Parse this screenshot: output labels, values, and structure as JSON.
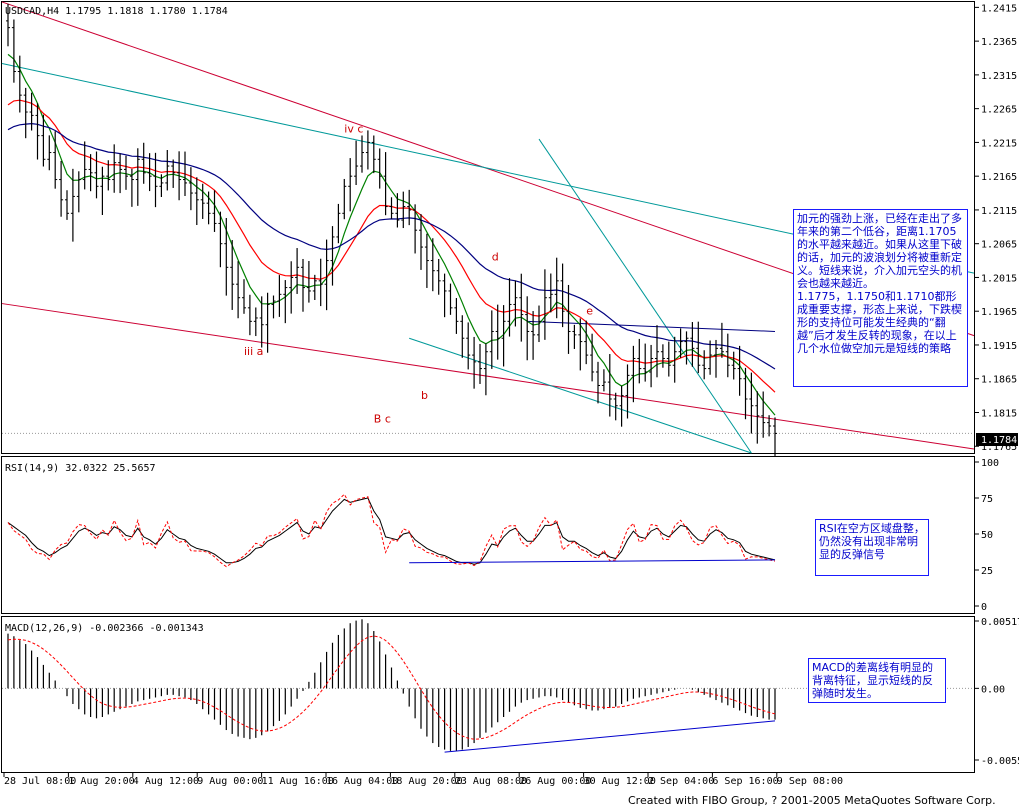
{
  "chart_data": [
    {
      "type": "candlestick",
      "panel": "price",
      "title": "USDCAD,H4  1.1795 1.1818 1.1780 1.1784",
      "last_price_label": "1.1784",
      "yticks": [
        "1.2415",
        "1.2365",
        "1.2315",
        "1.2265",
        "1.2215",
        "1.2165",
        "1.2115",
        "1.2065",
        "1.2015",
        "1.1965",
        "1.1915",
        "1.1865",
        "1.1815",
        "1.1765"
      ],
      "ylim": [
        1.1755,
        1.242
      ],
      "bar_count": 131,
      "close": [
        1.2385,
        1.232,
        1.2285,
        1.226,
        1.2255,
        1.2225,
        1.219,
        1.22,
        1.216,
        1.213,
        1.211,
        1.2135,
        1.216,
        1.2175,
        1.217,
        1.215,
        1.2165,
        1.216,
        1.2185,
        1.2175,
        1.2165,
        1.216,
        1.219,
        1.217,
        1.2165,
        1.215,
        1.2155,
        1.218,
        1.217,
        1.216,
        1.2155,
        1.214,
        1.213,
        1.2125,
        1.211,
        1.2095,
        1.2065,
        1.203,
        1.2005,
        1.1985,
        1.197,
        1.195,
        1.1955,
        1.1945,
        1.1975,
        1.198,
        1.199,
        1.2,
        1.2015,
        1.203,
        1.2,
        1.1995,
        1.201,
        1.2005,
        1.204,
        1.2075,
        1.211,
        1.215,
        1.2165,
        1.218,
        1.22,
        1.2215,
        1.219,
        1.2165,
        1.212,
        1.211,
        1.21,
        1.212,
        1.2115,
        1.2085,
        1.206,
        1.204,
        1.2025,
        1.201,
        1.1995,
        1.197,
        1.195,
        1.1925,
        1.19,
        1.189,
        1.188,
        1.1905,
        1.1935,
        1.1925,
        1.195,
        1.1975,
        1.1985,
        1.196,
        1.1935,
        1.193,
        1.195,
        1.1985,
        1.199,
        1.201,
        1.1965,
        1.1935,
        1.193,
        1.192,
        1.19,
        1.1875,
        1.1855,
        1.186,
        1.1835,
        1.1825,
        1.184,
        1.187,
        1.1895,
        1.188,
        1.1875,
        1.1895,
        1.1905,
        1.1895,
        1.1885,
        1.1905,
        1.192,
        1.1925,
        1.191,
        1.1885,
        1.188,
        1.19,
        1.191,
        1.1905,
        1.1885,
        1.188,
        1.1865,
        1.1835,
        1.1825,
        1.181,
        1.18,
        1.1795,
        1.1784
      ],
      "moving_averages": [
        {
          "color": "#008000",
          "period": "fast"
        },
        {
          "color": "#ff0000",
          "period": "medium"
        },
        {
          "color": "#000080",
          "period": "slow"
        }
      ],
      "trendlines": [
        {
          "color": "#cc0033",
          "from": [
            1.242,
            0
          ],
          "to": [
            1.203,
            130
          ]
        },
        {
          "color": "#009999",
          "from": [
            1.233,
            0
          ],
          "to": [
            1.2085,
            130
          ]
        },
        {
          "color": "#009999",
          "from": [
            1.222,
            90
          ],
          "to": [
            1.1755,
            126
          ]
        },
        {
          "color": "#cc0033",
          "from": [
            1.1975,
            0
          ],
          "to": [
            1.1805,
            130
          ]
        },
        {
          "color": "#009999",
          "from": [
            1.1925,
            68
          ],
          "to": [
            1.1755,
            126
          ]
        },
        {
          "color": "#000080",
          "from": [
            1.195,
            88
          ],
          "to": [
            1.1935,
            130
          ]
        }
      ],
      "wave_labels": [
        {
          "text": "iv c",
          "bar": 57,
          "price": 1.223
        },
        {
          "text": "iii a",
          "bar": 40,
          "price": 1.19
        },
        {
          "text": "b",
          "bar": 70,
          "price": 1.1835
        },
        {
          "text": "d",
          "bar": 82,
          "price": 1.204
        },
        {
          "text": "e",
          "bar": 98,
          "price": 1.196
        },
        {
          "text": "B c",
          "bar": 62,
          "price": 1.18
        }
      ],
      "annotation": "加元的强劲上涨，已经在走出了多年来的第二个低谷，距离1.1705的水平越来越近。如果从这里下破的话，加元的波浪划分将被重新定义。短线来说，介入加元空头的机会也越来越近。\n1.1775，1.1750和1.1710都形成重要支撑，形态上来说，下跌楔形的支持位可能发生经典的“翻越”后才发生反转的现象，在以上几个水位做空加元是短线的策略"
    },
    {
      "type": "line",
      "panel": "rsi",
      "title": "RSI(14,9)  32.0322  25.5657",
      "yticks": [
        "100",
        "75",
        "50",
        "25",
        "0"
      ],
      "ylim": [
        0,
        100
      ],
      "values": [
        58,
        55,
        52,
        49,
        44,
        40,
        38,
        35,
        37,
        40,
        42,
        47,
        52,
        54,
        52,
        49,
        51,
        50,
        55,
        53,
        49,
        48,
        54,
        48,
        46,
        43,
        47,
        53,
        50,
        47,
        46,
        42,
        40,
        39,
        38,
        36,
        33,
        30,
        30,
        31,
        33,
        36,
        40,
        41,
        45,
        47,
        49,
        52,
        55,
        58,
        52,
        50,
        55,
        54,
        60,
        66,
        70,
        74,
        72,
        73,
        74,
        75,
        66,
        60,
        48,
        47,
        46,
        50,
        51,
        46,
        43,
        40,
        38,
        36,
        35,
        33,
        31,
        30,
        30,
        29,
        30,
        36,
        43,
        42,
        48,
        52,
        54,
        49,
        45,
        45,
        50,
        56,
        56,
        58,
        48,
        45,
        45,
        42,
        40,
        37,
        35,
        37,
        34,
        33,
        38,
        46,
        52,
        48,
        47,
        52,
        54,
        50,
        48,
        52,
        56,
        55,
        50,
        46,
        45,
        50,
        53,
        51,
        47,
        46,
        44,
        38,
        36,
        35,
        34,
        33,
        32
      ],
      "signal_color": "#ff0000",
      "support_line": {
        "from": [
          30,
          68
        ],
        "to": [
          32,
          130
        ]
      },
      "annotation": "RSI在空方区域盘整，仍然没有出现非常明显的反弹信号"
    },
    {
      "type": "bar",
      "panel": "macd",
      "title": "MACD(12,26,9)  -0.002366  -0.001343",
      "yticks": [
        "0.00517",
        "0.00",
        "-0.0055"
      ],
      "ylim": [
        -0.0055,
        0.00517
      ],
      "values": [
        0.0042,
        0.004,
        0.0037,
        0.0034,
        0.0029,
        0.0024,
        0.0018,
        0.0012,
        0.0006,
        0.0,
        -0.0006,
        -0.0012,
        -0.0016,
        -0.002,
        -0.0022,
        -0.0023,
        -0.0022,
        -0.002,
        -0.0018,
        -0.0016,
        -0.0014,
        -0.0012,
        -0.001,
        -0.0009,
        -0.0008,
        -0.0007,
        -0.0006,
        -0.0005,
        -0.0005,
        -0.0006,
        -0.0007,
        -0.0009,
        -0.0012,
        -0.0016,
        -0.002,
        -0.0024,
        -0.0028,
        -0.0032,
        -0.0035,
        -0.0037,
        -0.0038,
        -0.0039,
        -0.0038,
        -0.0036,
        -0.0033,
        -0.0029,
        -0.0025,
        -0.002,
        -0.0014,
        -0.0008,
        -0.0002,
        0.0005,
        0.0012,
        0.002,
        0.0028,
        0.0035,
        0.0041,
        0.0046,
        0.005,
        0.0052,
        0.0053,
        0.005,
        0.0044,
        0.0036,
        0.0026,
        0.0016,
        0.0006,
        -0.0004,
        -0.0014,
        -0.0023,
        -0.0031,
        -0.0037,
        -0.0042,
        -0.0045,
        -0.0047,
        -0.0048,
        -0.0048,
        -0.0047,
        -0.0045,
        -0.0042,
        -0.0038,
        -0.0034,
        -0.003,
        -0.0026,
        -0.0022,
        -0.0018,
        -0.0014,
        -0.0011,
        -0.0009,
        -0.0008,
        -0.0007,
        -0.0006,
        -0.0006,
        -0.0007,
        -0.0009,
        -0.0011,
        -0.0013,
        -0.0015,
        -0.0016,
        -0.0017,
        -0.0017,
        -0.0016,
        -0.0015,
        -0.0014,
        -0.0012,
        -0.001,
        -0.0008,
        -0.0007,
        -0.0006,
        -0.0005,
        -0.0004,
        -0.0003,
        -0.0002,
        -0.0001,
        0.0,
        0.0,
        -0.0001,
        -0.0003,
        -0.0005,
        -0.0007,
        -0.0009,
        -0.0011,
        -0.0013,
        -0.0015,
        -0.0017,
        -0.0019,
        -0.0021,
        -0.0022,
        -0.0023,
        -0.0024,
        -0.0024
      ],
      "signal_color": "#ff0000",
      "divergence_line": {
        "from": [
          -0.0049,
          74
        ],
        "to": [
          -0.0025,
          130
        ]
      },
      "annotation": "MACD的差离线有明显的背离特征，显示短线的反弹随时发生。"
    }
  ],
  "xticks": [
    "28 Jul 08:00",
    "1 Aug 20:00",
    "4 Aug 12:00",
    "9 Aug 00:00",
    "11 Aug 16:00",
    "16 Aug 04:00",
    "18 Aug 20:00",
    "23 Aug 08:00",
    "26 Aug 00:00",
    "30 Aug 12:00",
    "2 Sep 04:00",
    "6 Sep 16:00",
    "9 Sep 08:00"
  ],
  "footer": "Created with FIBO Group, ? 2001-2005 MetaQuotes Software Corp."
}
